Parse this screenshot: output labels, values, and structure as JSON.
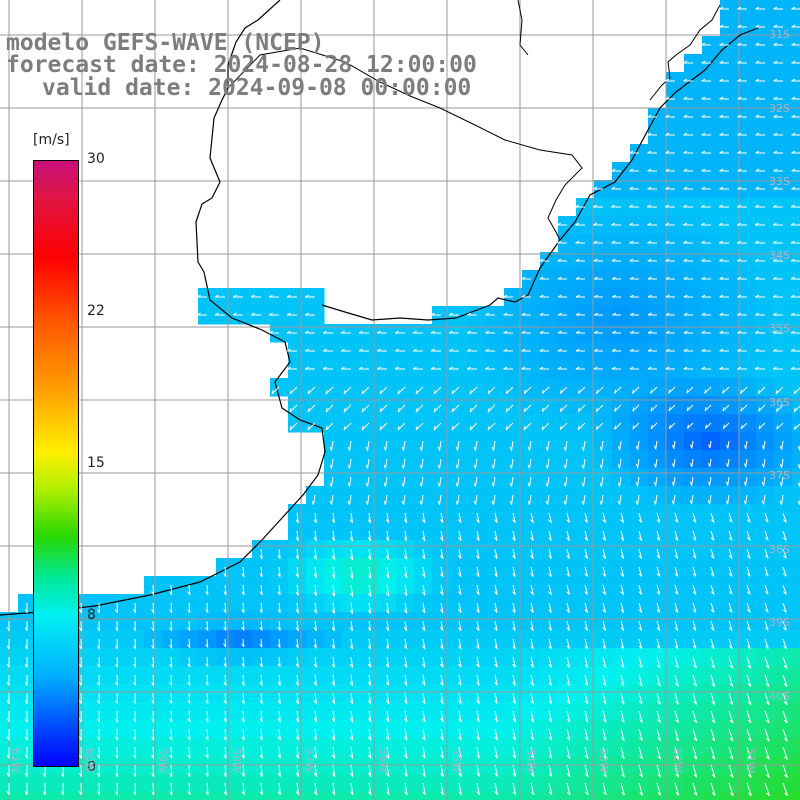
{
  "header": {
    "line1": "modelo GEFS-WAVE (NCEP)",
    "line2": "forecast date: 2024-08-28 12:00:00",
    "line3": "valid date: 2024-09-08 00:00:00"
  },
  "colorbar": {
    "unit": "[m/s]",
    "labels": [
      "30",
      "22",
      "15",
      "8",
      "0"
    ],
    "colors": [
      "#c8107a",
      "#ff0000",
      "#ffee00",
      "#00f0f0",
      "#0000ff"
    ]
  },
  "map": {
    "lat_labels": [
      "31S",
      "32S",
      "33S",
      "34S",
      "35S",
      "36S",
      "37S",
      "38S",
      "39S",
      "40S"
    ],
    "lon_labels": [
      "61W",
      "60W",
      "59W",
      "58W",
      "57W",
      "56W",
      "55W",
      "54W",
      "53W",
      "52W",
      "51W"
    ],
    "colors": {
      "land": "#ffffff",
      "grid": "#9a9a9a",
      "coast": "#000000",
      "arrow": "#ffffff"
    }
  }
}
